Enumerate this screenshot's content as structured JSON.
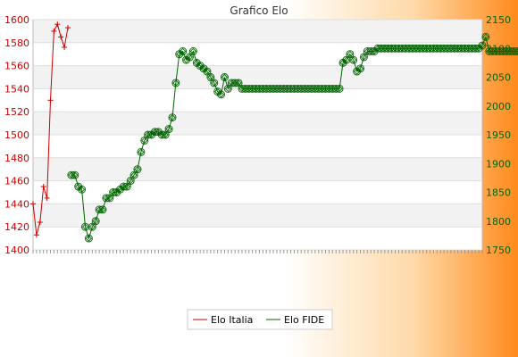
{
  "chart_data": {
    "type": "line",
    "title": "Grafico Elo",
    "xlabel": "",
    "ylabel": "",
    "grid": true,
    "legend_position": "bottom-center",
    "left_axis": {
      "min": 1400,
      "max": 1600,
      "ticks": [
        1400,
        1420,
        1440,
        1460,
        1480,
        1500,
        1520,
        1540,
        1560,
        1580,
        1600
      ],
      "color": "#cc0000"
    },
    "right_axis": {
      "min": 1750,
      "max": 2150,
      "ticks": [
        1750,
        1800,
        1850,
        1900,
        1950,
        2000,
        2050,
        2100,
        2150
      ],
      "color": "#006400"
    },
    "x_count": 130,
    "series": [
      {
        "name": "Elo Italia",
        "axis": "left",
        "color": "#cc0000",
        "marker": "plus",
        "x": [
          0,
          1,
          2,
          3,
          4,
          5,
          6,
          7,
          8,
          9,
          10
        ],
        "values": [
          1440,
          1413,
          1424,
          1455,
          1445,
          1530,
          1590,
          1596,
          1585,
          1576,
          1593
        ]
      },
      {
        "name": "Elo FIDE",
        "axis": "right",
        "color": "#006400",
        "marker": "diamond-circle",
        "x_start": 11,
        "values": [
          1880,
          1880,
          1860,
          1855,
          1790,
          1770,
          1790,
          1800,
          1820,
          1820,
          1840,
          1840,
          1850,
          1850,
          1855,
          1860,
          1860,
          1870,
          1880,
          1890,
          1920,
          1940,
          1950,
          1950,
          1955,
          1955,
          1950,
          1950,
          1960,
          1980,
          2040,
          2090,
          2095,
          2080,
          2085,
          2095,
          2075,
          2070,
          2065,
          2060,
          2050,
          2040,
          2025,
          2020,
          2050,
          2030,
          2040,
          2040,
          2040,
          2030,
          2030,
          2030,
          2030,
          2030,
          2030,
          2030,
          2030,
          2030,
          2030,
          2030,
          2030,
          2030,
          2030,
          2030,
          2030,
          2030,
          2030,
          2030,
          2030,
          2030,
          2030,
          2030,
          2030,
          2030,
          2030,
          2030,
          2030,
          2030,
          2075,
          2080,
          2090,
          2080,
          2060,
          2065,
          2085,
          2095,
          2095,
          2095,
          2100,
          2100,
          2100,
          2100,
          2100,
          2100,
          2100,
          2100,
          2100,
          2100,
          2100,
          2100,
          2100,
          2100,
          2100,
          2100,
          2100,
          2100,
          2100,
          2100,
          2100,
          2100,
          2100,
          2100,
          2100,
          2100,
          2100,
          2100,
          2100,
          2100,
          2105,
          2120,
          2095,
          2095,
          2095,
          2095,
          2095,
          2095,
          2095,
          2095,
          2095,
          2095
        ]
      }
    ]
  },
  "legend": {
    "item1": "Elo Italia",
    "item2": "Elo FIDE"
  }
}
